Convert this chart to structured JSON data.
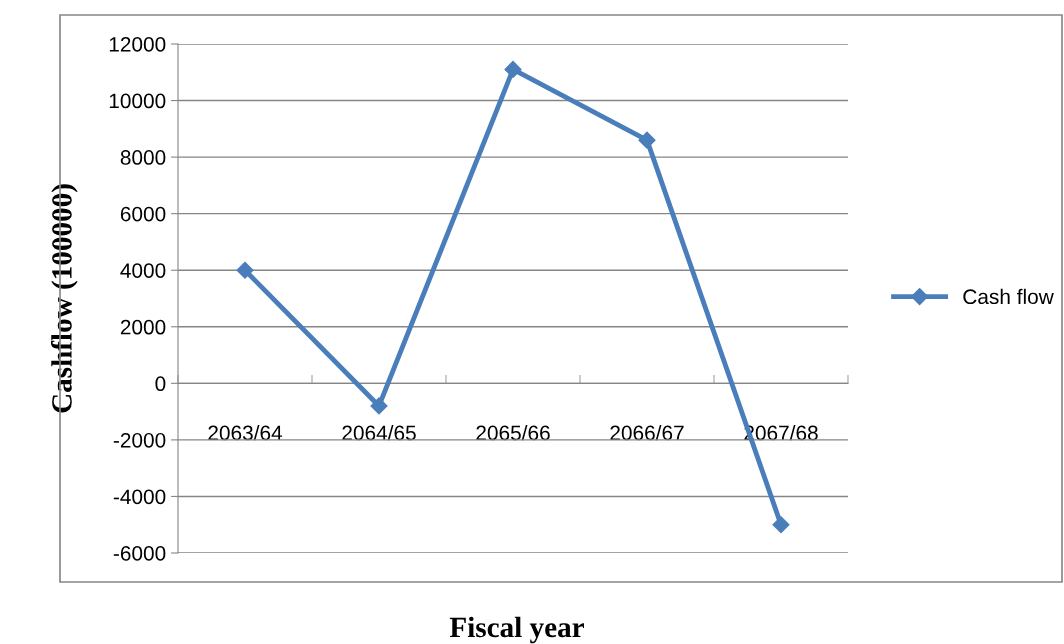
{
  "chart_data": {
    "type": "line",
    "xlabel": "Fiscal year",
    "ylabel": "Cashflow (100000)",
    "categories": [
      "2063/64",
      "2064/65",
      "2065/66",
      "2066/67",
      "2067/68"
    ],
    "series": [
      {
        "name": "Cash flow",
        "color": "#4a7ebb",
        "values": [
          4000,
          -800,
          11100,
          8600,
          -5000
        ]
      }
    ],
    "ylim": [
      -6000,
      12000
    ],
    "yticks": [
      -6000,
      -4000,
      -2000,
      0,
      2000,
      4000,
      6000,
      8000,
      10000,
      12000
    ],
    "grid": "y",
    "legend": "right",
    "marker": "diamond",
    "line_style": "solid"
  }
}
